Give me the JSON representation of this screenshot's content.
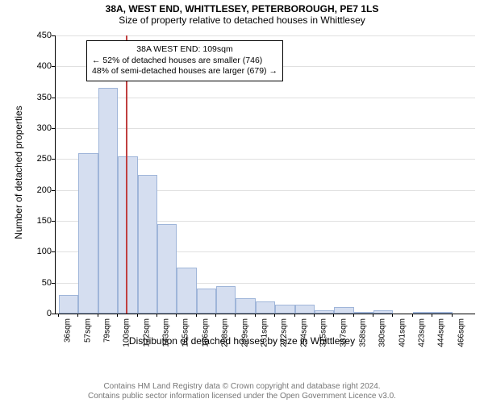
{
  "title_main": "38A, WEST END, WHITTLESEY, PETERBOROUGH, PE7 1LS",
  "title_sub": "Size of property relative to detached houses in Whittlesey",
  "y_axis_label": "Number of detached properties",
  "x_axis_label": "Distribution of detached houses by size in Whittlesey",
  "chart": {
    "type": "histogram",
    "ylim": [
      0,
      450
    ],
    "ytick_step": 50,
    "yticks": [
      0,
      50,
      100,
      150,
      200,
      250,
      300,
      350,
      400,
      450
    ],
    "bar_fill": "#d5def0",
    "bar_border": "#9fb5d9",
    "grid_color": "#e0e0e0",
    "background_color": "#ffffff",
    "marker_color": "#c04040",
    "marker_value": 109,
    "x_start": 36,
    "x_step": 21.5,
    "bins": [
      {
        "label": "36sqm",
        "value": 30
      },
      {
        "label": "57sqm",
        "value": 260
      },
      {
        "label": "79sqm",
        "value": 365
      },
      {
        "label": "100sqm",
        "value": 255
      },
      {
        "label": "122sqm",
        "value": 225
      },
      {
        "label": "143sqm",
        "value": 145
      },
      {
        "label": "165sqm",
        "value": 75
      },
      {
        "label": "186sqm",
        "value": 40
      },
      {
        "label": "208sqm",
        "value": 45
      },
      {
        "label": "229sqm",
        "value": 25
      },
      {
        "label": "251sqm",
        "value": 20
      },
      {
        "label": "272sqm",
        "value": 15
      },
      {
        "label": "294sqm",
        "value": 15
      },
      {
        "label": "315sqm",
        "value": 5
      },
      {
        "label": "337sqm",
        "value": 10
      },
      {
        "label": "358sqm",
        "value": 2
      },
      {
        "label": "380sqm",
        "value": 5
      },
      {
        "label": "401sqm",
        "value": 0
      },
      {
        "label": "423sqm",
        "value": 2
      },
      {
        "label": "444sqm",
        "value": 2
      },
      {
        "label": "466sqm",
        "value": 0
      }
    ],
    "annotation": {
      "line1": "38A WEST END: 109sqm",
      "line2": "← 52% of detached houses are smaller (746)",
      "line3": "48% of semi-detached houses are larger (679) →"
    }
  },
  "footer_line1": "Contains HM Land Registry data © Crown copyright and database right 2024.",
  "footer_line2": "Contains public sector information licensed under the Open Government Licence v3.0."
}
